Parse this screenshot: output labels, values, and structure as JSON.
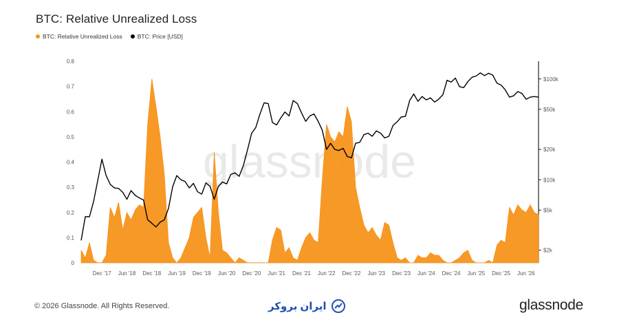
{
  "chart_data": {
    "type": "area",
    "title": "BTC: Relative Unrealized Loss",
    "legend": [
      "BTC: Relative Unrealized Loss",
      "BTC: Price [USD]"
    ],
    "legend_placement": "top-left",
    "colors": {
      "loss": "#f7931a",
      "price": "#000000",
      "watermark": "#e9e9e9"
    },
    "grid": false,
    "watermark": "glassnode",
    "x_tick_labels": [
      "Dec '17",
      "Jun '18",
      "Dec '18",
      "Jun '19",
      "Dec '19",
      "Jun '20",
      "Dec '20",
      "Jun '21",
      "Dec '21",
      "Jun '22",
      "Dec '22",
      "Jun '23",
      "Dec '23",
      "Jun '24",
      "Dec '24",
      "Jun '25",
      "Dec '25",
      "Jun '26"
    ],
    "x_range": [
      "2017-07",
      "2026-09"
    ],
    "y_left": {
      "range": [
        0,
        0.8
      ],
      "ticks": [
        "0",
        "0.1",
        "0.2",
        "0.3",
        "0.4",
        "0.5",
        "0.6",
        "0.7",
        "0.8"
      ]
    },
    "y_right": {
      "scale": "log",
      "tick_labels": [
        "$2k",
        "$5k",
        "$10k",
        "$20k",
        "$50k",
        "$100k"
      ]
    },
    "series": [
      {
        "name": "BTC: Relative Unrealized Loss",
        "type": "area",
        "points": [
          [
            "2017-07",
            0.05
          ],
          [
            "2017-08",
            0.02
          ],
          [
            "2017-09",
            0.08
          ],
          [
            "2017-10",
            0.01
          ],
          [
            "2017-11",
            0.0
          ],
          [
            "2017-12",
            0.0
          ],
          [
            "2018-01",
            0.03
          ],
          [
            "2018-02",
            0.22
          ],
          [
            "2018-03",
            0.18
          ],
          [
            "2018-04",
            0.24
          ],
          [
            "2018-05",
            0.13
          ],
          [
            "2018-06",
            0.2
          ],
          [
            "2018-07",
            0.17
          ],
          [
            "2018-08",
            0.21
          ],
          [
            "2018-09",
            0.23
          ],
          [
            "2018-10",
            0.22
          ],
          [
            "2018-11",
            0.55
          ],
          [
            "2018-12",
            0.73
          ],
          [
            "2019-01",
            0.62
          ],
          [
            "2019-02",
            0.5
          ],
          [
            "2019-03",
            0.35
          ],
          [
            "2019-04",
            0.08
          ],
          [
            "2019-05",
            0.02
          ],
          [
            "2019-06",
            0.0
          ],
          [
            "2019-07",
            0.02
          ],
          [
            "2019-08",
            0.06
          ],
          [
            "2019-09",
            0.1
          ],
          [
            "2019-10",
            0.18
          ],
          [
            "2019-11",
            0.2
          ],
          [
            "2019-12",
            0.22
          ],
          [
            "2020-01",
            0.1
          ],
          [
            "2020-02",
            0.02
          ],
          [
            "2020-03",
            0.44
          ],
          [
            "2020-04",
            0.2
          ],
          [
            "2020-05",
            0.05
          ],
          [
            "2020-06",
            0.04
          ],
          [
            "2020-07",
            0.02
          ],
          [
            "2020-08",
            0.0
          ],
          [
            "2020-09",
            0.02
          ],
          [
            "2020-10",
            0.01
          ],
          [
            "2020-11",
            0.0
          ],
          [
            "2020-12",
            0.0
          ],
          [
            "2021-01",
            0.0
          ],
          [
            "2021-02",
            0.0
          ],
          [
            "2021-03",
            0.0
          ],
          [
            "2021-04",
            0.0
          ],
          [
            "2021-05",
            0.09
          ],
          [
            "2021-06",
            0.14
          ],
          [
            "2021-07",
            0.13
          ],
          [
            "2021-08",
            0.04
          ],
          [
            "2021-09",
            0.06
          ],
          [
            "2021-10",
            0.02
          ],
          [
            "2021-11",
            0.01
          ],
          [
            "2021-12",
            0.06
          ],
          [
            "2022-01",
            0.1
          ],
          [
            "2022-02",
            0.12
          ],
          [
            "2022-03",
            0.09
          ],
          [
            "2022-04",
            0.08
          ],
          [
            "2022-05",
            0.33
          ],
          [
            "2022-06",
            0.55
          ],
          [
            "2022-07",
            0.5
          ],
          [
            "2022-08",
            0.48
          ],
          [
            "2022-09",
            0.52
          ],
          [
            "2022-10",
            0.5
          ],
          [
            "2022-11",
            0.62
          ],
          [
            "2022-12",
            0.56
          ],
          [
            "2023-01",
            0.3
          ],
          [
            "2023-02",
            0.22
          ],
          [
            "2023-03",
            0.15
          ],
          [
            "2023-04",
            0.12
          ],
          [
            "2023-05",
            0.14
          ],
          [
            "2023-06",
            0.11
          ],
          [
            "2023-07",
            0.09
          ],
          [
            "2023-08",
            0.16
          ],
          [
            "2023-09",
            0.15
          ],
          [
            "2023-10",
            0.08
          ],
          [
            "2023-11",
            0.02
          ],
          [
            "2023-12",
            0.01
          ],
          [
            "2024-01",
            0.02
          ],
          [
            "2024-02",
            0.0
          ],
          [
            "2024-03",
            0.0
          ],
          [
            "2024-04",
            0.03
          ],
          [
            "2024-05",
            0.02
          ],
          [
            "2024-06",
            0.02
          ],
          [
            "2024-07",
            0.04
          ],
          [
            "2024-08",
            0.03
          ],
          [
            "2024-09",
            0.03
          ],
          [
            "2024-10",
            0.01
          ],
          [
            "2024-11",
            0.0
          ],
          [
            "2024-12",
            0.0
          ],
          [
            "2025-01",
            0.01
          ],
          [
            "2025-02",
            0.02
          ],
          [
            "2025-03",
            0.04
          ],
          [
            "2025-04",
            0.05
          ],
          [
            "2025-05",
            0.01
          ],
          [
            "2025-06",
            0.0
          ],
          [
            "2025-07",
            0.0
          ],
          [
            "2025-08",
            0.0
          ],
          [
            "2025-09",
            0.01
          ],
          [
            "2025-10",
            0.0
          ],
          [
            "2025-11",
            0.07
          ],
          [
            "2025-12",
            0.09
          ],
          [
            "2026-01",
            0.08
          ],
          [
            "2026-02",
            0.22
          ],
          [
            "2026-03",
            0.19
          ],
          [
            "2026-04",
            0.23
          ],
          [
            "2026-05",
            0.21
          ],
          [
            "2026-06",
            0.2
          ],
          [
            "2026-07",
            0.23
          ],
          [
            "2026-08",
            0.2
          ],
          [
            "2026-09",
            0.19
          ]
        ]
      },
      {
        "name": "BTC: Price [USD]",
        "type": "line",
        "points": [
          [
            "2017-07",
            2500
          ],
          [
            "2017-08",
            4300
          ],
          [
            "2017-09",
            4300
          ],
          [
            "2017-10",
            6100
          ],
          [
            "2017-11",
            9900
          ],
          [
            "2017-12",
            16000
          ],
          [
            "2018-01",
            11000
          ],
          [
            "2018-02",
            9000
          ],
          [
            "2018-03",
            8300
          ],
          [
            "2018-04",
            8200
          ],
          [
            "2018-05",
            7500
          ],
          [
            "2018-06",
            6400
          ],
          [
            "2018-07",
            7800
          ],
          [
            "2018-08",
            7000
          ],
          [
            "2018-09",
            6600
          ],
          [
            "2018-10",
            6300
          ],
          [
            "2018-11",
            4000
          ],
          [
            "2018-12",
            3700
          ],
          [
            "2019-01",
            3400
          ],
          [
            "2019-02",
            3800
          ],
          [
            "2019-03",
            4000
          ],
          [
            "2019-04",
            5200
          ],
          [
            "2019-05",
            8500
          ],
          [
            "2019-06",
            11000
          ],
          [
            "2019-07",
            10000
          ],
          [
            "2019-08",
            9600
          ],
          [
            "2019-09",
            8300
          ],
          [
            "2019-10",
            9200
          ],
          [
            "2019-11",
            7600
          ],
          [
            "2019-12",
            7200
          ],
          [
            "2020-01",
            9300
          ],
          [
            "2020-02",
            8600
          ],
          [
            "2020-03",
            6400
          ],
          [
            "2020-04",
            8600
          ],
          [
            "2020-05",
            9500
          ],
          [
            "2020-06",
            9100
          ],
          [
            "2020-07",
            11300
          ],
          [
            "2020-08",
            11700
          ],
          [
            "2020-09",
            10800
          ],
          [
            "2020-10",
            13800
          ],
          [
            "2020-11",
            19700
          ],
          [
            "2020-12",
            29000
          ],
          [
            "2021-01",
            33000
          ],
          [
            "2021-02",
            45000
          ],
          [
            "2021-03",
            58000
          ],
          [
            "2021-04",
            57000
          ],
          [
            "2021-05",
            37000
          ],
          [
            "2021-06",
            35000
          ],
          [
            "2021-07",
            41000
          ],
          [
            "2021-08",
            47000
          ],
          [
            "2021-09",
            43000
          ],
          [
            "2021-10",
            61000
          ],
          [
            "2021-11",
            57000
          ],
          [
            "2021-12",
            46000
          ],
          [
            "2022-01",
            38000
          ],
          [
            "2022-02",
            43000
          ],
          [
            "2022-03",
            45000
          ],
          [
            "2022-04",
            38000
          ],
          [
            "2022-05",
            31000
          ],
          [
            "2022-06",
            20000
          ],
          [
            "2022-07",
            23000
          ],
          [
            "2022-08",
            20000
          ],
          [
            "2022-09",
            19500
          ],
          [
            "2022-10",
            20500
          ],
          [
            "2022-11",
            17000
          ],
          [
            "2022-12",
            16500
          ],
          [
            "2023-01",
            23000
          ],
          [
            "2023-02",
            23500
          ],
          [
            "2023-03",
            28000
          ],
          [
            "2023-04",
            29000
          ],
          [
            "2023-05",
            27000
          ],
          [
            "2023-06",
            30500
          ],
          [
            "2023-07",
            29000
          ],
          [
            "2023-08",
            26000
          ],
          [
            "2023-09",
            27000
          ],
          [
            "2023-10",
            34500
          ],
          [
            "2023-11",
            37700
          ],
          [
            "2023-12",
            42000
          ],
          [
            "2024-01",
            42500
          ],
          [
            "2024-02",
            61000
          ],
          [
            "2024-03",
            71000
          ],
          [
            "2024-04",
            60000
          ],
          [
            "2024-05",
            67000
          ],
          [
            "2024-06",
            62000
          ],
          [
            "2024-07",
            65000
          ],
          [
            "2024-08",
            59000
          ],
          [
            "2024-09",
            63000
          ],
          [
            "2024-10",
            70000
          ],
          [
            "2024-11",
            97000
          ],
          [
            "2024-12",
            93000
          ],
          [
            "2025-01",
            102000
          ],
          [
            "2025-02",
            84000
          ],
          [
            "2025-03",
            82000
          ],
          [
            "2025-04",
            94000
          ],
          [
            "2025-05",
            104000
          ],
          [
            "2025-06",
            107000
          ],
          [
            "2025-07",
            115000
          ],
          [
            "2025-08",
            108000
          ],
          [
            "2025-09",
            114000
          ],
          [
            "2025-10",
            109000
          ],
          [
            "2025-11",
            91000
          ],
          [
            "2025-12",
            87000
          ],
          [
            "2026-01",
            78000
          ],
          [
            "2026-02",
            66000
          ],
          [
            "2026-03",
            68000
          ],
          [
            "2026-04",
            75000
          ],
          [
            "2026-05",
            72000
          ],
          [
            "2026-06",
            63000
          ],
          [
            "2026-07",
            66000
          ],
          [
            "2026-08",
            67000
          ],
          [
            "2026-09",
            66000
          ]
        ]
      }
    ]
  },
  "footer": {
    "copyright": "© 2026 Glassnode. All Rights Reserved.",
    "broker_logo": "ایران بروکر",
    "brand": "glassnode"
  }
}
